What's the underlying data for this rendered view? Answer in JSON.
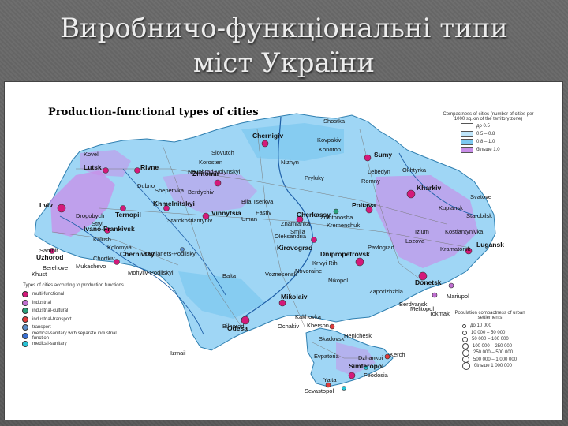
{
  "slide": {
    "title_line1": "Виробничо-функціональні типи",
    "title_line2": "міст України"
  },
  "map": {
    "title": "Production-functional types of cities",
    "density_legend": {
      "header": "Compactness of cities (number of cities per 1000 sq.km of the territory zone)",
      "classes": [
        {
          "label": "до 0.5",
          "color": "#ffffff"
        },
        {
          "label": "0.5 – 0.8",
          "color": "#bfe6fb"
        },
        {
          "label": "0.8 – 1.0",
          "color": "#7cc8f0"
        },
        {
          "label": "більше 1.0",
          "color": "#c98ee8"
        }
      ]
    },
    "types_legend": {
      "header": "Types of cities according to production functions",
      "items": [
        {
          "label": "multi-functional",
          "color": "#d4197a"
        },
        {
          "label": "industrial",
          "color": "#c06fd0"
        },
        {
          "label": "industrial-cultural",
          "color": "#2aa07a"
        },
        {
          "label": "industrial-transport",
          "color": "#e23b3b"
        },
        {
          "label": "transport",
          "color": "#5b8ec9"
        },
        {
          "label": "medical-sanitary with separate industrial function",
          "color": "#3a6fd1"
        },
        {
          "label": "medical-sanitary",
          "color": "#29c3d6"
        }
      ]
    },
    "population_legend": {
      "header": "Population compactness of urban settlements",
      "items": [
        {
          "label": "до 10 000"
        },
        {
          "label": "10 000 – 50 000"
        },
        {
          "label": "50 000 – 100 000"
        },
        {
          "label": "100 000 – 250 000"
        },
        {
          "label": "250 000 – 500 000"
        },
        {
          "label": "500 000 – 1 000 000"
        },
        {
          "label": "більше 1 000 000"
        }
      ]
    },
    "cities": [
      {
        "name": "Chernigiv",
        "big": true
      },
      {
        "name": "Sumy",
        "big": true
      },
      {
        "name": "Kharkiv",
        "big": true
      },
      {
        "name": "Lutsk",
        "big": true
      },
      {
        "name": "Rivne",
        "big": true
      },
      {
        "name": "Zhitomir",
        "big": true
      },
      {
        "name": "Lviv",
        "big": true
      },
      {
        "name": "Ternopil",
        "big": true
      },
      {
        "name": "Khmelnitskyi",
        "big": true
      },
      {
        "name": "Ivano-Frankivsk",
        "big": true
      },
      {
        "name": "Uzhorod",
        "big": true
      },
      {
        "name": "Chernivtsy",
        "big": true
      },
      {
        "name": "Vinnytsia",
        "big": true
      },
      {
        "name": "Poltava",
        "big": true
      },
      {
        "name": "Cherkassy",
        "big": true
      },
      {
        "name": "Kirovograd",
        "big": true
      },
      {
        "name": "Dnipropetrovsk",
        "big": true
      },
      {
        "name": "Lugansk",
        "big": true
      },
      {
        "name": "Donetsk",
        "big": true
      },
      {
        "name": "Mikolaiv",
        "big": true
      },
      {
        "name": "Odesa",
        "big": true
      },
      {
        "name": "Kherson",
        "big": false
      },
      {
        "name": "Simferopol",
        "big": true
      },
      {
        "name": "Sevastopol",
        "big": false
      },
      {
        "name": "Kerch",
        "big": false
      },
      {
        "name": "Feodosia",
        "big": false
      },
      {
        "name": "Yalta",
        "big": false
      },
      {
        "name": "Berdyansk",
        "big": false
      },
      {
        "name": "Mariupol",
        "big": false
      },
      {
        "name": "Kremenchuk",
        "big": false
      },
      {
        "name": "Uman",
        "big": false
      },
      {
        "name": "Nizhyn",
        "big": false
      },
      {
        "name": "Konotop",
        "big": false
      },
      {
        "name": "Shostka",
        "big": false
      },
      {
        "name": "Okhtyrka",
        "big": false
      },
      {
        "name": "Lebedyn",
        "big": false
      },
      {
        "name": "Izmail",
        "big": false
      },
      {
        "name": "Kovel",
        "big": false
      },
      {
        "name": "Drogobych",
        "big": false
      },
      {
        "name": "Stryi",
        "big": false
      },
      {
        "name": "Kalush",
        "big": false
      },
      {
        "name": "Kolomyia",
        "big": false
      },
      {
        "name": "Berehove",
        "big": false
      },
      {
        "name": "Balta",
        "big": false
      },
      {
        "name": "Voznesensk",
        "big": false
      },
      {
        "name": "Novoraine",
        "big": false
      },
      {
        "name": "Zaporizhzhia",
        "big": false
      },
      {
        "name": "Nikopol",
        "big": false
      },
      {
        "name": "Krivyi Rih",
        "big": false
      },
      {
        "name": "Pavlograd",
        "big": false
      },
      {
        "name": "Izium",
        "big": false
      },
      {
        "name": "Kupiansk",
        "big": false
      },
      {
        "name": "Starobilsk",
        "big": false
      },
      {
        "name": "Svatove",
        "big": false
      },
      {
        "name": "Dzhankoi",
        "big": false
      },
      {
        "name": "Evpatoria",
        "big": false
      },
      {
        "name": "Skadovsk",
        "big": false
      },
      {
        "name": "Henichesk",
        "big": false
      },
      {
        "name": "Korosten",
        "big": false
      },
      {
        "name": "Novohrad-Volynskyi",
        "big": false
      },
      {
        "name": "Dubno",
        "big": false
      },
      {
        "name": "Kamianets-Podilskyi",
        "big": false
      },
      {
        "name": "Mohyliv-Podilskyi",
        "big": false
      },
      {
        "name": "Slovutch",
        "big": false
      },
      {
        "name": "Pryluky",
        "big": false
      },
      {
        "name": "Romny",
        "big": false
      },
      {
        "name": "Lozova",
        "big": false
      },
      {
        "name": "Kostiantynivka",
        "big": false
      },
      {
        "name": "Kramatorsk",
        "big": false
      },
      {
        "name": "Melitopol",
        "big": false
      },
      {
        "name": "Tokmak",
        "big": false
      },
      {
        "name": "Oleksandria",
        "big": false
      },
      {
        "name": "Znamianka",
        "big": false
      },
      {
        "name": "Zolotonosha",
        "big": false
      },
      {
        "name": "Smila",
        "big": false
      },
      {
        "name": "Bila Tserkva",
        "big": false
      },
      {
        "name": "Fastiv",
        "big": false
      },
      {
        "name": "Berdychiv",
        "big": false
      },
      {
        "name": "Shepetivka",
        "big": false
      },
      {
        "name": "Starokostiantyniv",
        "big": false
      },
      {
        "name": "Chortkiv",
        "big": false
      },
      {
        "name": "Sambir",
        "big": false
      },
      {
        "name": "Mukachevo",
        "big": false
      },
      {
        "name": "Khust",
        "big": false
      },
      {
        "name": "Bilhorod",
        "big": false
      },
      {
        "name": "Ochakiv",
        "big": false
      },
      {
        "name": "Kakhovka",
        "big": false
      },
      {
        "name": "Kovpakiv",
        "big": false
      }
    ]
  }
}
